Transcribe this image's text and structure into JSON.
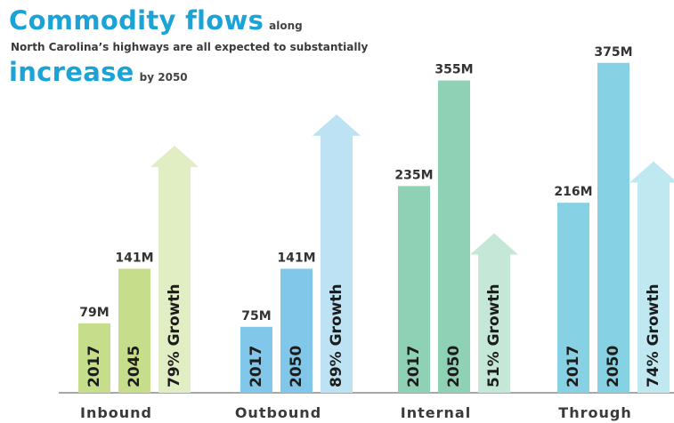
{
  "header": {
    "title_big": "Commodity flows",
    "title_small": "along",
    "subtitle": "North Carolina’s highways are all expected to substantially",
    "emph_big": "increase",
    "emph_small": "by 2050"
  },
  "chart_data": {
    "type": "bar",
    "title": "Commodity flows along North Carolina’s highways are all expected to substantially increase by 2050",
    "groups": [
      {
        "name": "Inbound",
        "labels": [
          "2017",
          "2045"
        ],
        "values": [
          79,
          141
        ],
        "value_labels": [
          "79M",
          "141M"
        ],
        "growth": "79% Growth",
        "growth_pct": 79,
        "colors": {
          "bar": "#c6dd8c",
          "arrow": "#e1edc2"
        }
      },
      {
        "name": "Outbound",
        "labels": [
          "2017",
          "2050"
        ],
        "values": [
          75,
          141
        ],
        "value_labels": [
          "75M",
          "141M"
        ],
        "growth": "89% Growth",
        "growth_pct": 89,
        "colors": {
          "bar": "#80c7ea",
          "arrow": "#bde2f4"
        }
      },
      {
        "name": "Internal",
        "labels": [
          "2017",
          "2050"
        ],
        "values": [
          235,
          355
        ],
        "value_labels": [
          "235M",
          "355M"
        ],
        "growth": "51% Growth",
        "growth_pct": 51,
        "colors": {
          "bar": "#8fd1b4",
          "arrow": "#c5e7d7"
        }
      },
      {
        "name": "Through",
        "labels": [
          "2017",
          "2050"
        ],
        "values": [
          216,
          375
        ],
        "value_labels": [
          "216M",
          "375M"
        ],
        "growth": "74% Growth",
        "growth_pct": 74,
        "colors": {
          "bar": "#86d2e4",
          "arrow": "#c0e8f1"
        }
      }
    ],
    "unit": "M"
  }
}
